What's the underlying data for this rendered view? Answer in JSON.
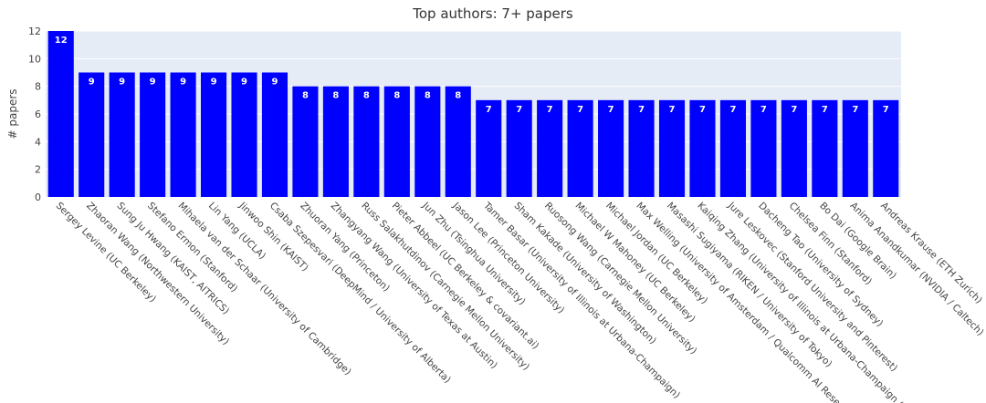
{
  "chart_data": {
    "type": "bar",
    "title": "Top authors: 7+ papers",
    "ylabel": "# papers",
    "xlabel": "",
    "ylim": [
      0,
      12
    ],
    "yticks": [
      0,
      2,
      4,
      6,
      8,
      10,
      12
    ],
    "bar_color": "#0000ff",
    "plot_bg": "#e5ecf6",
    "grid": true,
    "categories": [
      "Sergey Levine (UC Berkeley)",
      "Zhaoran Wang (Northwestern University)",
      "Sung Ju Hwang (KAIST, AITRICS)",
      "Stefano Ermon (Stanford)",
      "Mihaela van der Schaar (University of Cambridge)",
      "Lin Yang (UCLA)",
      "Jinwoo Shin (KAIST)",
      "Csaba Szepesvari (DeepMind / University of Alberta)",
      "Zhuoran Yang (Princeton)",
      "Zhangyang Wang (University of Texas at Austin)",
      "Russ Salakhutdinov (Carnegie Mellon University)",
      "Pieter Abbeel (UC Berkeley & covariant.ai)",
      "Jun Zhu (Tsinghua University)",
      "Jason Lee (Princeton University)",
      "Tamer Basar (University of Illinois at Urbana-Champaign)",
      "Sham Kakade (University of Washington)",
      "Ruosong Wang (Carnegie Mellon University)",
      "Michael W Mahoney (UC Berkeley)",
      "Michael Jordan (UC Berkeley)",
      "Max Welling (University of Amsterdam / Qualcomm AI Rese",
      "Masashi Sugiyama (RIKEN / University of Tokyo)",
      "Kaiqing Zhang (University of Illinois at Urbana-Champaign (",
      "Jure Leskovec (Stanford University and Pinterest)",
      "Dacheng Tao (University of Sydney)",
      "Chelsea Finn (Stanford)",
      "Bo Dai (Google Brain)",
      "Anima Anandkumar (NVIDIA / Caltech)",
      "Andreas Krause (ETH Zurich)"
    ],
    "values": [
      12,
      9,
      9,
      9,
      9,
      9,
      9,
      9,
      8,
      8,
      8,
      8,
      8,
      8,
      7,
      7,
      7,
      7,
      7,
      7,
      7,
      7,
      7,
      7,
      7,
      7,
      7,
      7
    ]
  }
}
